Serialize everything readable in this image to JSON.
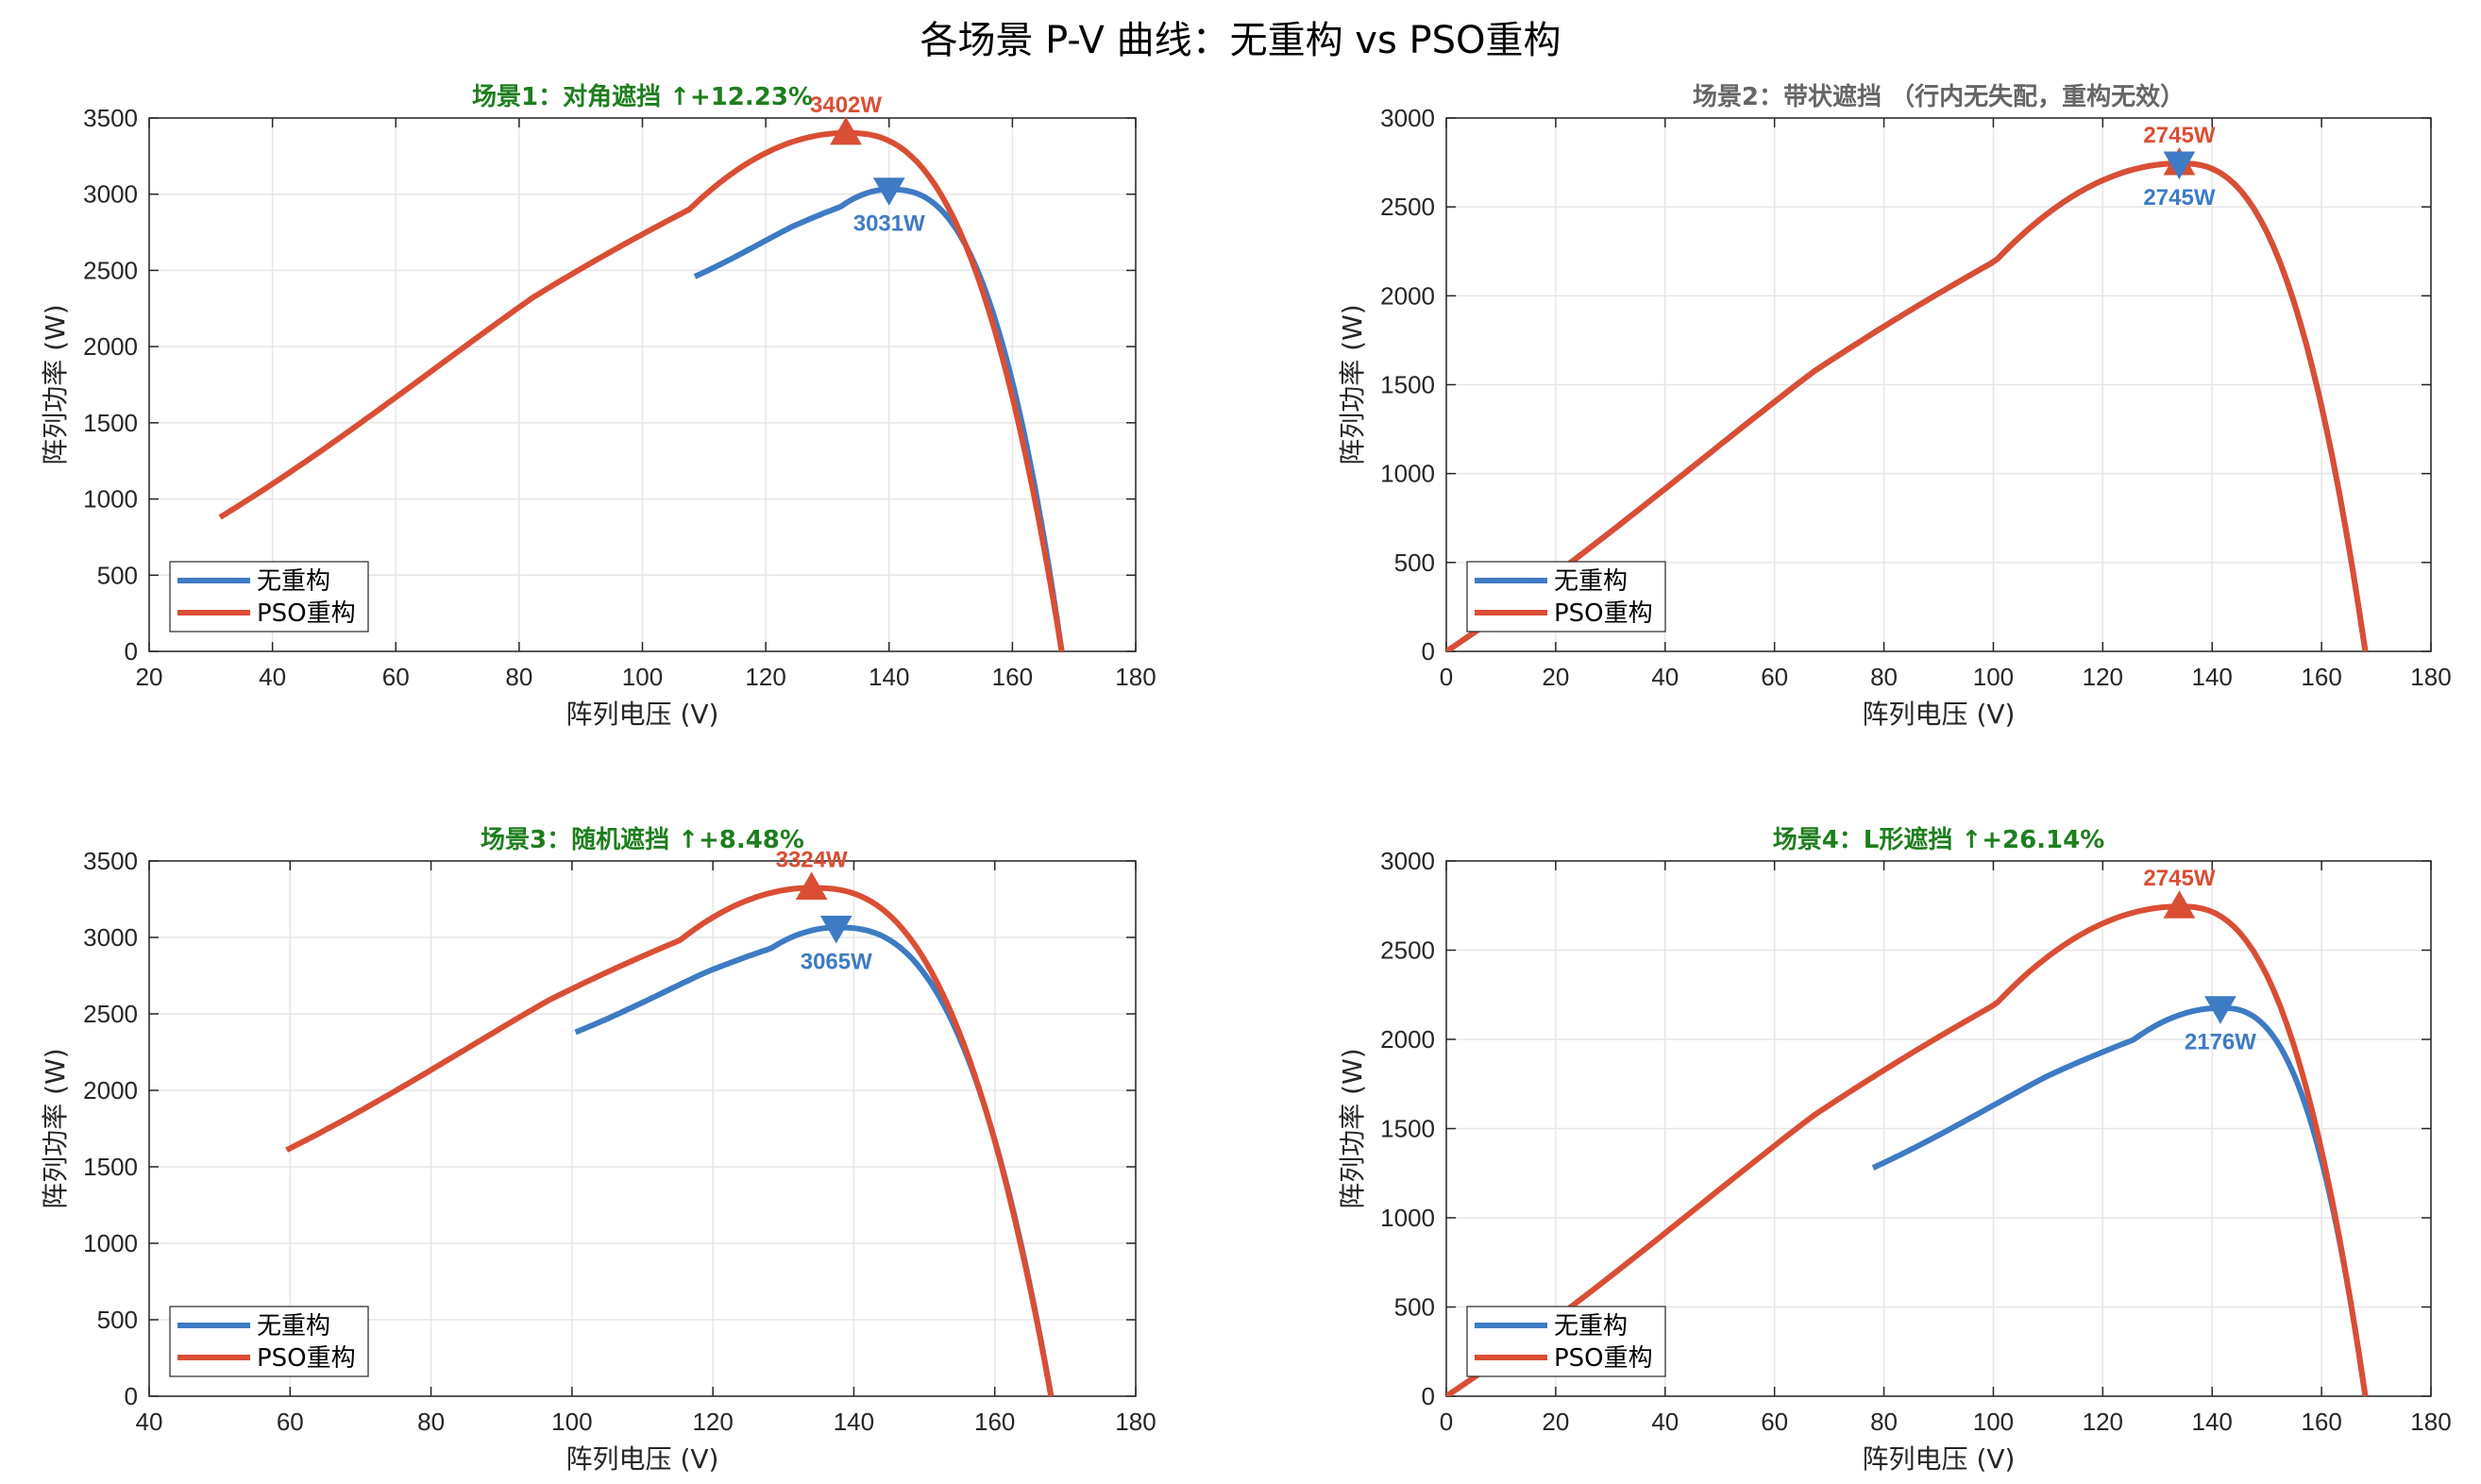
{
  "figure_title": "各场景 P-V 曲线：无重构 vs PSO重构",
  "colors": {
    "no_reconfig": "#3E7BC4",
    "pso": "#DA4E34",
    "title_green": "#1E7E1E",
    "title_gray": "#666666",
    "grid": "#E6E6E6",
    "axis": "#262626"
  },
  "chart_data": [
    {
      "type": "line",
      "title": "场景1：对角遮挡 ↑+12.23%",
      "title_color": "green",
      "xlabel": "阵列电压 (V)",
      "ylabel": "阵列功率 (W)",
      "xlim": [
        20,
        180
      ],
      "ylim": [
        0,
        3500
      ],
      "xticks": [
        20,
        40,
        60,
        80,
        100,
        120,
        140,
        160,
        180
      ],
      "yticks": [
        0,
        500,
        1000,
        1500,
        2000,
        2500,
        3000,
        3500
      ],
      "grid": true,
      "legend": "bottom-left",
      "series": [
        {
          "name": "无重构",
          "color_key": "no_reconfig",
          "v_start": 108.5,
          "p_start": 2460,
          "v_mpp": 140,
          "p_mpp": 3031,
          "v_oc": 168
        },
        {
          "name": "PSO重构",
          "color_key": "pso",
          "v_start": 31.5,
          "p_start": 880,
          "v_mpp": 133,
          "p_mpp": 3402,
          "v_oc": 168
        }
      ],
      "annotations": [
        {
          "series": "PSO重构",
          "x": 133,
          "y": 3402,
          "text": "3402W",
          "marker": "up",
          "position": "above"
        },
        {
          "series": "无重构",
          "x": 140,
          "y": 3031,
          "text": "3031W",
          "marker": "down",
          "position": "below"
        }
      ]
    },
    {
      "type": "line",
      "title": "场景2：带状遮挡 （行内无失配，重构无效）",
      "title_color": "gray",
      "xlabel": "阵列电压 (V)",
      "ylabel": "阵列功率 (W)",
      "xlim": [
        0,
        180
      ],
      "ylim": [
        0,
        3000
      ],
      "xticks": [
        0,
        20,
        40,
        60,
        80,
        100,
        120,
        140,
        160,
        180
      ],
      "yticks": [
        0,
        500,
        1000,
        1500,
        2000,
        2500,
        3000
      ],
      "grid": true,
      "legend": "bottom-left",
      "series": [
        {
          "name": "无重构",
          "color_key": "no_reconfig",
          "v_start": 0,
          "p_start": 0,
          "v_mpp": 134,
          "p_mpp": 2745,
          "v_oc": 168
        },
        {
          "name": "PSO重构",
          "color_key": "pso",
          "v_start": 0,
          "p_start": 0,
          "v_mpp": 134,
          "p_mpp": 2745,
          "v_oc": 168
        }
      ],
      "annotations": [
        {
          "series": "PSO重构",
          "x": 134,
          "y": 2745,
          "text": "2745W",
          "marker": "up",
          "position": "above"
        },
        {
          "series": "无重构",
          "x": 134,
          "y": 2745,
          "text": "2745W",
          "marker": "down",
          "position": "below"
        }
      ]
    },
    {
      "type": "line",
      "title": "场景3：随机遮挡 ↑+8.48%",
      "title_color": "green",
      "xlabel": "阵列电压 (V)",
      "ylabel": "阵列功率 (W)",
      "xlim": [
        40,
        180
      ],
      "ylim": [
        0,
        3500
      ],
      "xticks": [
        40,
        60,
        80,
        100,
        120,
        140,
        160,
        180
      ],
      "yticks": [
        0,
        500,
        1000,
        1500,
        2000,
        2500,
        3000,
        3500
      ],
      "grid": true,
      "legend": "bottom-left",
      "series": [
        {
          "name": "无重构",
          "color_key": "no_reconfig",
          "v_start": 100.5,
          "p_start": 2380,
          "v_mpp": 137.5,
          "p_mpp": 3065,
          "v_oc": 168
        },
        {
          "name": "PSO重构",
          "color_key": "pso",
          "v_start": 59.5,
          "p_start": 1610,
          "v_mpp": 134,
          "p_mpp": 3324,
          "v_oc": 168
        }
      ],
      "annotations": [
        {
          "series": "PSO重构",
          "x": 134,
          "y": 3324,
          "text": "3324W",
          "marker": "up",
          "position": "above"
        },
        {
          "series": "无重构",
          "x": 137.5,
          "y": 3065,
          "text": "3065W",
          "marker": "down",
          "position": "below"
        }
      ]
    },
    {
      "type": "line",
      "title": "场景4：L形遮挡 ↑+26.14%",
      "title_color": "green",
      "xlabel": "阵列电压 (V)",
      "ylabel": "阵列功率 (W)",
      "xlim": [
        0,
        180
      ],
      "ylim": [
        0,
        3000
      ],
      "xticks": [
        0,
        20,
        40,
        60,
        80,
        100,
        120,
        140,
        160,
        180
      ],
      "yticks": [
        0,
        500,
        1000,
        1500,
        2000,
        2500,
        3000
      ],
      "grid": true,
      "legend": "bottom-left",
      "series": [
        {
          "name": "无重构",
          "color_key": "no_reconfig",
          "v_start": 78,
          "p_start": 1280,
          "v_mpp": 141.5,
          "p_mpp": 2176,
          "v_oc": 168
        },
        {
          "name": "PSO重构",
          "color_key": "pso",
          "v_start": 0,
          "p_start": 0,
          "v_mpp": 134,
          "p_mpp": 2745,
          "v_oc": 168
        }
      ],
      "annotations": [
        {
          "series": "PSO重构",
          "x": 134,
          "y": 2745,
          "text": "2745W",
          "marker": "up",
          "position": "above"
        },
        {
          "series": "无重构",
          "x": 141.5,
          "y": 2176,
          "text": "2176W",
          "marker": "down",
          "position": "below"
        }
      ]
    }
  ]
}
